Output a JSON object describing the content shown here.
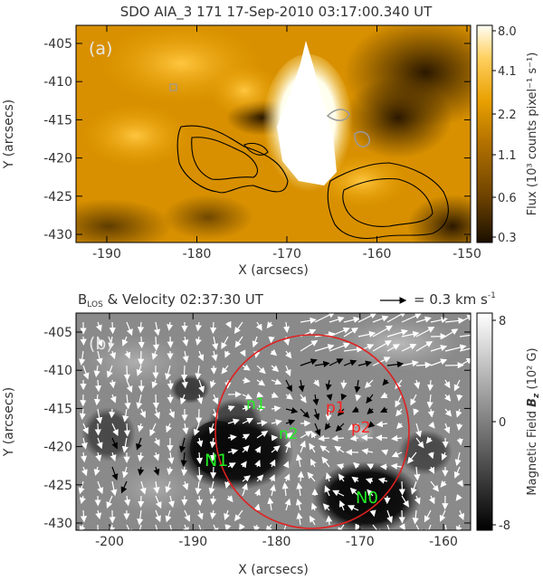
{
  "panel_a": {
    "title": "SDO AIA_3 171 17-Sep-2010 03:17:00.340 UT",
    "label": "(a)",
    "x_axis": {
      "label": "X (arcsecs)",
      "ticks": [
        "-190",
        "-180",
        "-170",
        "-160",
        "-150"
      ]
    },
    "y_axis": {
      "label": "Y (arcsecs)",
      "ticks": [
        "-405",
        "-410",
        "-415",
        "-420",
        "-425",
        "-430"
      ]
    },
    "colorbar": {
      "label": "Flux (10³ counts pixel⁻¹ s⁻¹)",
      "ticks": [
        "8.0",
        "4.1",
        "2.2",
        "1.1",
        "0.6",
        "0.3"
      ],
      "colors": [
        "#fffef5",
        "#ffd060",
        "#e8a000",
        "#b07000",
        "#6a4000",
        "#1a0f00"
      ]
    }
  },
  "panel_b": {
    "title": "B",
    "title_sub": "LOS",
    "title_rest": " & Velocity 02:37:30 UT",
    "scale_text": "= 0.3 km s",
    "scale_sup": "-1",
    "label": "(b)",
    "x_axis": {
      "label": "X (arcsecs)",
      "ticks": [
        "-200",
        "-190",
        "-180",
        "-170",
        "-160"
      ]
    },
    "y_axis": {
      "label": "Y (arcsecs)",
      "ticks": [
        "-405",
        "-410",
        "-415",
        "-420",
        "-425",
        "-430"
      ]
    },
    "colorbar": {
      "label_prefix": "Magnetic Field ",
      "label_var": "B",
      "label_sub": "z",
      "label_suffix": " (10² G)",
      "ticks": [
        "8",
        "0",
        "-8"
      ]
    },
    "regions": [
      {
        "name": "n1",
        "color": "#22ee22"
      },
      {
        "name": "n2",
        "color": "#22ee22"
      },
      {
        "name": "N1",
        "color": "#22ee22"
      },
      {
        "name": "N0",
        "color": "#22ee22"
      },
      {
        "name": "p1",
        "color": "#ff2020"
      },
      {
        "name": "p2",
        "color": "#ff2020"
      }
    ],
    "circle_color": "#e02020"
  }
}
